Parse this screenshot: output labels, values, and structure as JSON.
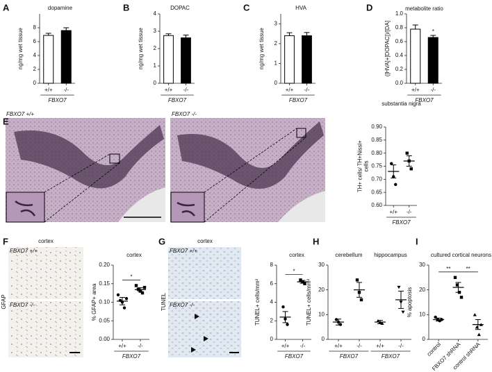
{
  "chart_data": [
    {
      "panel": "A",
      "type": "bar",
      "title": "dopamine",
      "ylabel": "ng/mg wet tissue",
      "categories": [
        "+/+",
        "-/-"
      ],
      "values": [
        6.9,
        7.6
      ],
      "errors": [
        0.3,
        0.4
      ],
      "colors": [
        "#ffffff",
        "#000000"
      ],
      "ylim": [
        0,
        10
      ],
      "yticks": [
        0,
        2,
        4,
        6,
        8
      ],
      "groups": [
        {
          "label": "FBXO7",
          "span": [
            0,
            1
          ]
        }
      ]
    },
    {
      "panel": "B",
      "type": "bar",
      "title": "DOPAC",
      "ylabel": "ng/mg wet tissue",
      "categories": [
        "+/+",
        "-/-"
      ],
      "values": [
        2.75,
        2.62
      ],
      "errors": [
        0.1,
        0.16
      ],
      "colors": [
        "#ffffff",
        "#000000"
      ],
      "ylim": [
        0,
        4
      ],
      "yticks": [
        0,
        1,
        2,
        3,
        4
      ],
      "groups": [
        {
          "label": "FBXO7",
          "span": [
            0,
            1
          ]
        }
      ]
    },
    {
      "panel": "C",
      "type": "bar",
      "title": "HVA",
      "ylabel": "ng/mg wet tissue",
      "categories": [
        "+/+",
        "-/-"
      ],
      "values": [
        2.4,
        2.4
      ],
      "errors": [
        0.15,
        0.16
      ],
      "colors": [
        "#ffffff",
        "#000000"
      ],
      "ylim": [
        0,
        3.5
      ],
      "yticks": [
        0,
        1,
        2,
        3
      ],
      "groups": [
        {
          "label": "FBXO7",
          "span": [
            0,
            1
          ]
        }
      ]
    },
    {
      "panel": "D",
      "type": "bar",
      "title": "metabolite ratio",
      "ylabel": "([HVA]+[DOPAC])/[DA]",
      "categories": [
        "+/+",
        "-/-"
      ],
      "values": [
        0.78,
        0.66
      ],
      "errors": [
        0.06,
        0.03
      ],
      "colors": [
        "#ffffff",
        "#000000"
      ],
      "ylim": [
        0,
        1
      ],
      "yticks": [
        {
          "value": 0,
          "label": "0.0"
        },
        {
          "value": 0.2,
          "label": "0.2"
        },
        {
          "value": 0.4,
          "label": "0.4"
        },
        {
          "value": 0.6,
          "label": "0.6"
        },
        {
          "value": 0.8,
          "label": "0.8"
        },
        {
          "value": 1,
          "label": "1.0"
        }
      ],
      "groups": [
        {
          "label": "FBXO7",
          "span": [
            0,
            1
          ]
        }
      ],
      "significance": [
        {
          "label": "*",
          "over": 1
        }
      ]
    },
    {
      "panel": "E",
      "type": "scatter",
      "title": "substantia nigra",
      "ylabel": "TH+ cells/ TH+Nissl+ cells",
      "categories": [
        "+/+",
        "-/-"
      ],
      "points": [
        [
          0.76,
          0.71,
          0.68
        ],
        [
          0.8,
          0.77,
          0.74
        ]
      ],
      "means": [
        0.73,
        0.77
      ],
      "errors": [
        0.025,
        0.02
      ],
      "ylim": [
        0.6,
        0.9
      ],
      "yticks": [
        {
          "value": 0.6,
          "label": "0.60"
        },
        {
          "value": 0.65,
          "label": "0.65"
        },
        {
          "value": 0.7,
          "label": "0.70"
        },
        {
          "value": 0.75,
          "label": "0.75"
        },
        {
          "value": 0.8,
          "label": "0.80"
        },
        {
          "value": 0.85,
          "label": "0.85"
        },
        {
          "value": 0.9,
          "label": "0.90"
        }
      ],
      "groups": [
        {
          "label": "FBXO7",
          "span": [
            0,
            1
          ]
        }
      ]
    },
    {
      "panel": "F",
      "type": "scatter",
      "title": "cortex",
      "ylabel": "% GFAP+ area",
      "categories": [
        "+/+",
        "-/-"
      ],
      "points": [
        [
          0.12,
          0.105,
          0.1,
          0.085,
          0.11
        ],
        [
          0.145,
          0.135,
          0.13,
          0.125,
          0.14
        ]
      ],
      "means": [
        0.103,
        0.134
      ],
      "errors": [
        0.01,
        0.005
      ],
      "ylim": [
        0,
        0.2
      ],
      "yticks": [
        {
          "value": 0,
          "label": "0.00"
        },
        {
          "value": 0.05,
          "label": "0.05"
        },
        {
          "value": 0.1,
          "label": "0.10"
        },
        {
          "value": 0.15,
          "label": "0.15"
        },
        {
          "value": 0.2,
          "label": "0.20"
        }
      ],
      "groups": [
        {
          "label": "FBXO7",
          "span": [
            0,
            1
          ]
        }
      ],
      "significance": [
        {
          "label": "*",
          "between": [
            0,
            1
          ]
        }
      ]
    },
    {
      "panel": "G",
      "type": "scatter",
      "title": "cortex",
      "ylabel": "TUNEL+ cells/mm²",
      "categories": [
        "+/+",
        "-/-"
      ],
      "points": [
        [
          3.5,
          2.2,
          1.6
        ],
        [
          6.4,
          6.2,
          6.0
        ]
      ],
      "means": [
        2.4,
        6.2
      ],
      "errors": [
        0.6,
        0.15
      ],
      "ylim": [
        0,
        8
      ],
      "yticks": [
        0,
        2,
        4,
        6,
        8
      ],
      "groups": [
        {
          "label": "FBXO7",
          "span": [
            0,
            1
          ]
        }
      ],
      "significance": [
        {
          "label": "*",
          "between": [
            0,
            1
          ]
        }
      ]
    },
    {
      "panel": "H",
      "type": "scatter",
      "section_titles": [
        "cerebellum",
        "hippocampus"
      ],
      "ylabel": "TUNEL+ cells/mm²",
      "categories": [
        "+/+",
        "-/-",
        "+/+",
        "-/-"
      ],
      "points": [
        [
          8,
          7,
          6
        ],
        [
          24,
          19,
          16
        ],
        [
          7.5,
          7,
          6.5
        ],
        [
          21,
          15,
          11
        ]
      ],
      "means": [
        7,
        20,
        7,
        16
      ],
      "errors": [
        1.2,
        3,
        0.7,
        3.5
      ],
      "ylim": [
        0,
        30
      ],
      "yticks": [
        0,
        10,
        20,
        30
      ],
      "groups": [
        {
          "label": "FBXO7",
          "span": [
            0,
            1
          ]
        },
        {
          "label": "FBXO7",
          "span": [
            2,
            3
          ]
        }
      ]
    },
    {
      "panel": "I",
      "type": "scatter",
      "title": "cultured cortical neurons",
      "ylabel": "% apoptosis",
      "categories": [
        "control",
        "FBXO7 shRNA",
        "control shRNA"
      ],
      "points": [
        [
          9,
          8,
          7.5,
          8
        ],
        [
          25,
          22,
          19,
          17
        ],
        [
          10,
          5,
          2,
          6
        ]
      ],
      "means": [
        8,
        21,
        6
      ],
      "errors": [
        0.6,
        2,
        2
      ],
      "ylim": [
        0,
        30
      ],
      "yticks": [
        0,
        10,
        20,
        30
      ],
      "significance": [
        {
          "label": "**",
          "between": [
            0,
            1
          ]
        },
        {
          "label": "**",
          "between": [
            1,
            2
          ]
        }
      ]
    }
  ],
  "micrographs": {
    "E": {
      "left": "FBXO7 +/+",
      "right": "FBXO7 -/-"
    },
    "F": {
      "title": "cortex",
      "top": "FBXO7 +/+",
      "bottom": "FBXO7 -/-",
      "stain": "GFAP"
    },
    "G": {
      "title": "cortex",
      "top": "FBXO7 +/+",
      "bottom": "FBXO7 -/-",
      "stain": "TUNEL"
    }
  }
}
